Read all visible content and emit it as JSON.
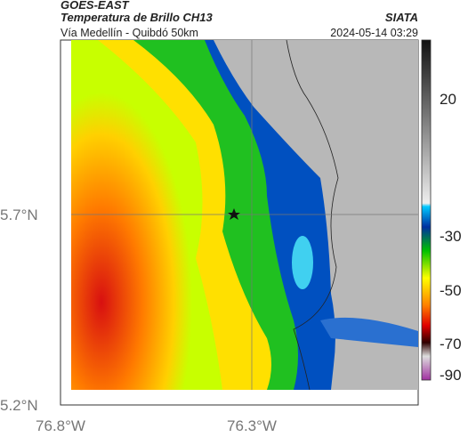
{
  "header": {
    "source": "GOES-EAST",
    "title": "Temperatura de Brillo CH13",
    "subtitle": "Vía Medellín - Quibdó 50km",
    "org": "SIATA",
    "datetime": "2024-05-14 03:29"
  },
  "map": {
    "lat_labels": [
      "5.7°N",
      "5.2°N"
    ],
    "lon_labels": [
      "76.8°W",
      "76.3°W"
    ]
  },
  "colorbar": {
    "ticks": [
      20,
      -30,
      -50,
      -70,
      -90
    ]
  }
}
